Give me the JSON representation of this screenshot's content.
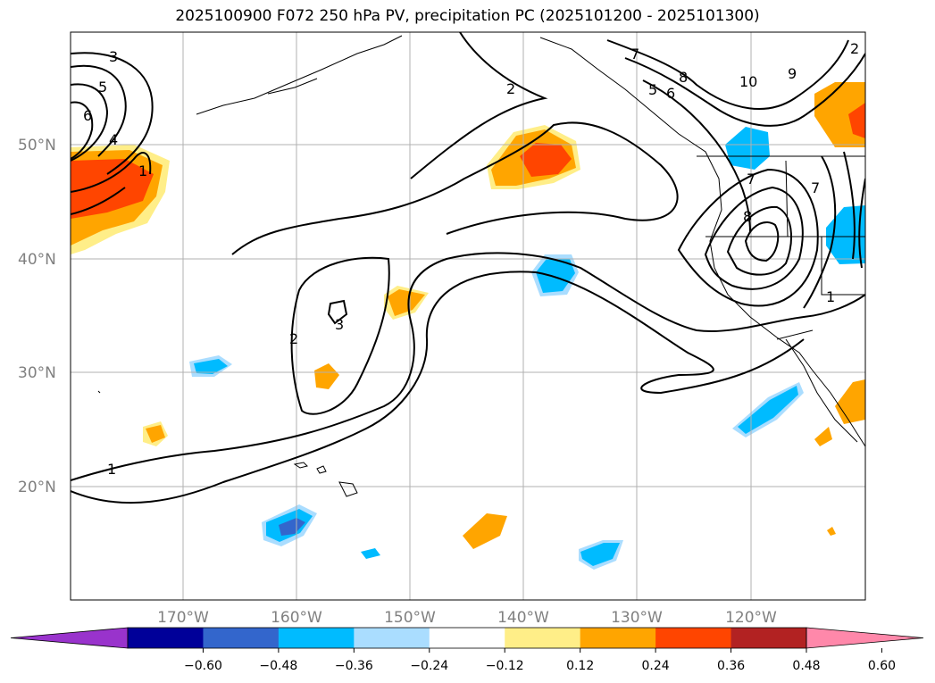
{
  "title": "2025100900 F072 250 hPa PV, precipitation PC (2025101200 - 2025101300)",
  "map": {
    "lat_labels": [
      "50°N",
      "40°N",
      "30°N",
      "20°N"
    ],
    "lon_labels": [
      "170°W",
      "160°W",
      "150°W",
      "140°W",
      "130°W",
      "120°W"
    ],
    "contour_labels": [
      "3",
      "5",
      "6",
      "4",
      "1",
      "2",
      "3",
      "2",
      "1",
      "7",
      "8",
      "10",
      "9",
      "5",
      "6",
      "7",
      "8",
      "1",
      "7",
      "2"
    ]
  },
  "colorbar": {
    "colors": [
      "#9933cc",
      "#000099",
      "#3366cc",
      "#00bbff",
      "#aaddff",
      "#ffffff",
      "#ffee88",
      "#ffa500",
      "#ff4500",
      "#b22222",
      "#ff88aa"
    ],
    "tick_labels": [
      "−0.60",
      "−0.48",
      "−0.36",
      "−0.24",
      "−0.12",
      "0.12",
      "0.24",
      "0.36",
      "0.48",
      "0.60"
    ]
  }
}
